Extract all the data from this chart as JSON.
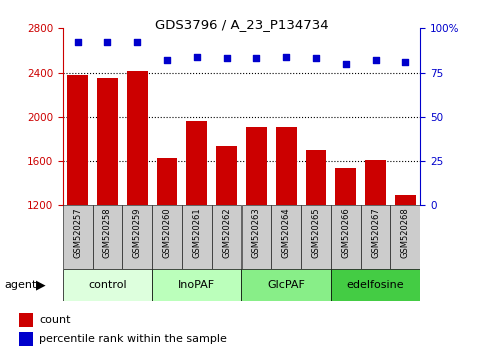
{
  "title": "GDS3796 / A_23_P134734",
  "samples": [
    "GSM520257",
    "GSM520258",
    "GSM520259",
    "GSM520260",
    "GSM520261",
    "GSM520262",
    "GSM520263",
    "GSM520264",
    "GSM520265",
    "GSM520266",
    "GSM520267",
    "GSM520268"
  ],
  "bar_values": [
    2380,
    2350,
    2410,
    1630,
    1960,
    1740,
    1910,
    1910,
    1700,
    1540,
    1610,
    1290
  ],
  "dot_values": [
    92,
    92,
    92,
    82,
    84,
    83,
    83,
    84,
    83,
    80,
    82,
    81
  ],
  "ylim_left": [
    1200,
    2800
  ],
  "ylim_right": [
    0,
    100
  ],
  "yticks_left": [
    1200,
    1600,
    2000,
    2400,
    2800
  ],
  "yticks_right": [
    0,
    25,
    50,
    75,
    100
  ],
  "bar_color": "#cc0000",
  "dot_color": "#0000cc",
  "groups": [
    {
      "label": "control",
      "start": 0,
      "end": 3,
      "color": "#ddffdd"
    },
    {
      "label": "InoPAF",
      "start": 3,
      "end": 6,
      "color": "#bbffbb"
    },
    {
      "label": "GlcPAF",
      "start": 6,
      "end": 9,
      "color": "#88ee88"
    },
    {
      "label": "edelfosine",
      "start": 9,
      "end": 12,
      "color": "#44cc44"
    }
  ],
  "agent_label": "agent",
  "legend_count_label": "count",
  "legend_pct_label": "percentile rank within the sample",
  "background_color": "#ffffff",
  "xtick_bg_color": "#cccccc",
  "grid_lines": [
    1600,
    2000,
    2400
  ]
}
